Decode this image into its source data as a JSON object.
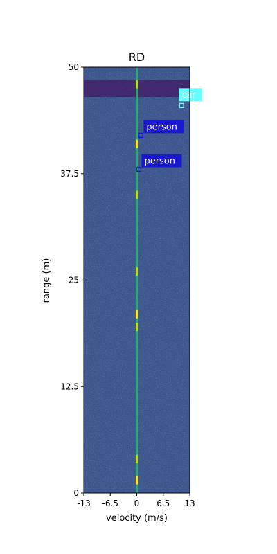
{
  "chart_data": {
    "type": "heatmap",
    "title": "RD",
    "xlabel": "velocity (m/s)",
    "ylabel": "range (m)",
    "xlim": [
      -13,
      13
    ],
    "ylim": [
      0,
      50
    ],
    "x_ticks": [
      -13,
      -6.5,
      0,
      6.5,
      13
    ],
    "x_tick_labels": [
      "-13",
      "-6.5",
      "0",
      "6.5",
      "13"
    ],
    "y_ticks": [
      0,
      12.5,
      25,
      37.5,
      50
    ],
    "y_tick_labels": [
      "0",
      "12.5",
      "25",
      "37.5",
      "50"
    ],
    "colormap": "viridis",
    "grid": false,
    "background_color": "#3b528b",
    "zero_doppler_color": "#35b779",
    "hotspot_color": "#fde725",
    "clutter_band": {
      "range": [
        46.5,
        48.5
      ],
      "color": "#440154"
    },
    "detections": [
      {
        "label": "car",
        "velocity": 11.0,
        "range": 45.5,
        "color": "#66ffff"
      },
      {
        "label": "person",
        "velocity": 1.0,
        "range": 42.0,
        "color": "#1a1acc"
      },
      {
        "label": "person",
        "velocity": 0.5,
        "range": 38.0,
        "color": "#1a1acc"
      }
    ]
  }
}
